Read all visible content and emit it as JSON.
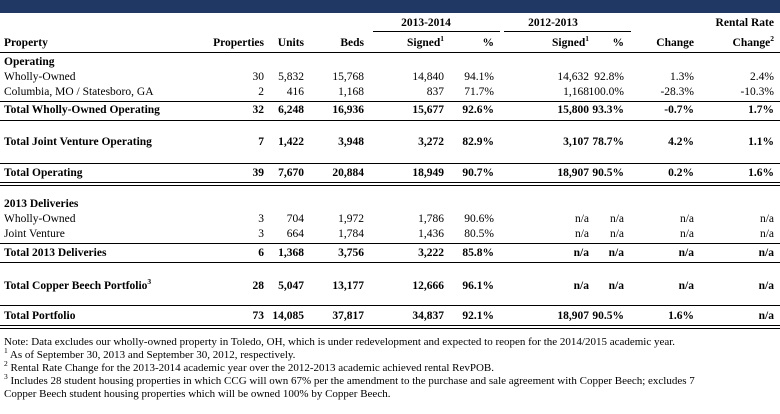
{
  "header": {
    "period_1": "2013-2014",
    "period_2": "2012-2013",
    "rental_rate_line1": "Rental Rate",
    "columns": {
      "property": "Property",
      "properties": "Properties",
      "units": "Units",
      "beds": "Beds",
      "signed": "Signed",
      "signed_sup": "1",
      "pct": "%",
      "change": "Change",
      "rental_change": "Change",
      "rental_change_sup": "2"
    }
  },
  "sections": {
    "operating": "Operating",
    "deliveries": "2013 Deliveries"
  },
  "rows": {
    "wholly_owned": {
      "label": "Wholly-Owned",
      "properties": "30",
      "units": "5,832",
      "beds": "15,768",
      "signed1": "14,840",
      "pct1": "94.1%",
      "signed2": "14,632",
      "pct2": "92.8%",
      "change": "1.3%",
      "rental": "2.4%"
    },
    "columbia": {
      "label": "Columbia, MO / Statesboro, GA",
      "properties": "2",
      "units": "416",
      "beds": "1,168",
      "signed1": "837",
      "pct1": "71.7%",
      "signed2": "1,168",
      "pct2": "100.0%",
      "change": "-28.3%",
      "rental": "-10.3%"
    },
    "total_wholly": {
      "label": "Total Wholly-Owned Operating",
      "properties": "32",
      "units": "6,248",
      "beds": "16,936",
      "signed1": "15,677",
      "pct1": "92.6%",
      "signed2": "15,800",
      "pct2": "93.3%",
      "change": "-0.7%",
      "rental": "1.7%"
    },
    "total_jv": {
      "label": "Total Joint Venture Operating",
      "properties": "7",
      "units": "1,422",
      "beds": "3,948",
      "signed1": "3,272",
      "pct1": "82.9%",
      "signed2": "3,107",
      "pct2": "78.7%",
      "change": "4.2%",
      "rental": "1.1%"
    },
    "total_operating": {
      "label": "Total Operating",
      "properties": "39",
      "units": "7,670",
      "beds": "20,884",
      "signed1": "18,949",
      "pct1": "90.7%",
      "signed2": "18,907",
      "pct2": "90.5%",
      "change": "0.2%",
      "rental": "1.6%"
    },
    "del_wholly": {
      "label": "Wholly-Owned",
      "properties": "3",
      "units": "704",
      "beds": "1,972",
      "signed1": "1,786",
      "pct1": "90.6%",
      "signed2": "n/a",
      "pct2": "n/a",
      "change": "n/a",
      "rental": "n/a"
    },
    "del_jv": {
      "label": "Joint Venture",
      "properties": "3",
      "units": "664",
      "beds": "1,784",
      "signed1": "1,436",
      "pct1": "80.5%",
      "signed2": "n/a",
      "pct2": "n/a",
      "change": "n/a",
      "rental": "n/a"
    },
    "total_deliveries": {
      "label": "Total 2013 Deliveries",
      "properties": "6",
      "units": "1,368",
      "beds": "3,756",
      "signed1": "3,222",
      "pct1": "85.8%",
      "signed2": "n/a",
      "pct2": "n/a",
      "change": "n/a",
      "rental": "n/a"
    },
    "copper_beech": {
      "label": "Total Copper Beech Portfolio",
      "label_sup": "3",
      "properties": "28",
      "units": "5,047",
      "beds": "13,177",
      "signed1": "12,666",
      "pct1": "96.1%",
      "signed2": "n/a",
      "pct2": "n/a",
      "change": "n/a",
      "rental": "n/a"
    },
    "total_portfolio": {
      "label": "Total Portfolio",
      "properties": "73",
      "units": "14,085",
      "beds": "37,817",
      "signed1": "34,837",
      "pct1": "92.1%",
      "signed2": "18,907",
      "pct2": "90.5%",
      "change": "1.6%",
      "rental": "n/a"
    }
  },
  "notes": {
    "note": "Note: Data excludes our wholly-owned property in Toledo, OH, which is under redevelopment and expected to reopen for the 2014/2015 academic year.",
    "fn1_sup": "1",
    "fn1": " As of September 30, 2013 and September 30, 2012, respectively.",
    "fn2_sup": "2",
    "fn2": " Rental Rate Change for the 2013-2014 academic year over the 2012-2013 academic achieved rental RevPOB.",
    "fn3_sup": "3",
    "fn3a": " Includes 28 student housing properties in which CCG will own 67% per the amendment to the purchase and sale agreement with Copper Beech; excludes 7",
    "fn3b": "Copper Beech student housing properties which will be owned 100% by Copper Beech."
  }
}
